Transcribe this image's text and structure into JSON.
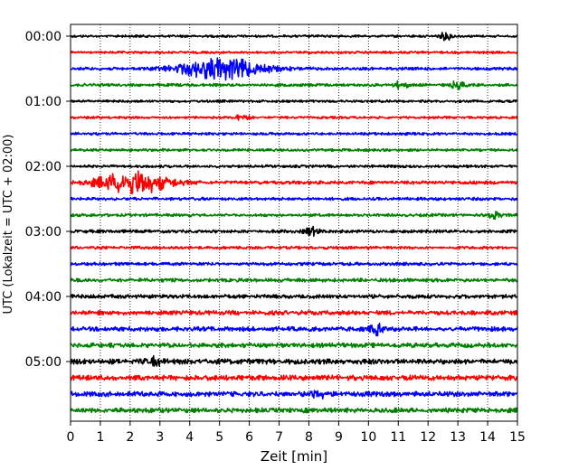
{
  "chart_data": {
    "type": "line",
    "title": "",
    "xlabel": "Zeit  [min]",
    "ylabel": "UTC (Lokalzeit = UTC + 02:00)",
    "xlim": [
      0,
      15
    ],
    "x_ticks": [
      "0",
      "1",
      "2",
      "3",
      "4",
      "5",
      "6",
      "7",
      "8",
      "9",
      "10",
      "11",
      "12",
      "13",
      "14",
      "15"
    ],
    "y_tick_labels": [
      "00:00",
      "01:00",
      "02:00",
      "03:00",
      "04:00",
      "05:00"
    ],
    "grid": "vertical dotted",
    "trace_interval_minutes": 15,
    "trace_colors": [
      "#000000",
      "#ff0000",
      "#0000ff",
      "#008000"
    ],
    "series": [
      {
        "start": "00:00",
        "color": "#000000",
        "amplitude": 1.0,
        "events": [
          {
            "minute": 12.6,
            "amplitude": 3.0
          }
        ]
      },
      {
        "start": "00:15",
        "color": "#ff0000",
        "amplitude": 1.0,
        "events": []
      },
      {
        "start": "00:30",
        "color": "#0000ff",
        "amplitude": 1.2,
        "events": [
          {
            "minute": 5.1,
            "amplitude": 9.0,
            "duration": 2.5
          }
        ]
      },
      {
        "start": "00:45",
        "color": "#008000",
        "amplitude": 1.2,
        "events": [
          {
            "minute": 11.1,
            "amplitude": 3.0
          },
          {
            "minute": 13.0,
            "amplitude": 3.0
          }
        ]
      },
      {
        "start": "01:00",
        "color": "#000000",
        "amplitude": 1.0,
        "events": []
      },
      {
        "start": "01:15",
        "color": "#ff0000",
        "amplitude": 1.0,
        "events": [
          {
            "minute": 5.8,
            "amplitude": 2.5
          }
        ]
      },
      {
        "start": "01:30",
        "color": "#0000ff",
        "amplitude": 1.1,
        "events": []
      },
      {
        "start": "01:45",
        "color": "#008000",
        "amplitude": 1.1,
        "events": []
      },
      {
        "start": "02:00",
        "color": "#000000",
        "amplitude": 1.1,
        "events": []
      },
      {
        "start": "02:15",
        "color": "#ff0000",
        "amplitude": 1.4,
        "events": [
          {
            "minute": 2.1,
            "amplitude": 10.0,
            "duration": 2.0
          }
        ]
      },
      {
        "start": "02:30",
        "color": "#0000ff",
        "amplitude": 1.2,
        "events": []
      },
      {
        "start": "02:45",
        "color": "#008000",
        "amplitude": 1.2,
        "events": [
          {
            "minute": 14.2,
            "amplitude": 2.5
          }
        ]
      },
      {
        "start": "03:00",
        "color": "#000000",
        "amplitude": 1.3,
        "events": [
          {
            "minute": 8.1,
            "amplitude": 3.0
          }
        ]
      },
      {
        "start": "03:15",
        "color": "#ff0000",
        "amplitude": 1.2,
        "events": []
      },
      {
        "start": "03:30",
        "color": "#0000ff",
        "amplitude": 1.3,
        "events": []
      },
      {
        "start": "03:45",
        "color": "#008000",
        "amplitude": 1.5,
        "events": []
      },
      {
        "start": "04:00",
        "color": "#000000",
        "amplitude": 1.6,
        "events": []
      },
      {
        "start": "04:15",
        "color": "#ff0000",
        "amplitude": 1.8,
        "events": []
      },
      {
        "start": "04:30",
        "color": "#0000ff",
        "amplitude": 1.9,
        "events": [
          {
            "minute": 10.3,
            "amplitude": 4.0
          }
        ]
      },
      {
        "start": "04:45",
        "color": "#008000",
        "amplitude": 1.9,
        "events": []
      },
      {
        "start": "05:00",
        "color": "#000000",
        "amplitude": 2.2,
        "events": [
          {
            "minute": 2.8,
            "amplitude": 3.0
          }
        ]
      },
      {
        "start": "05:15",
        "color": "#ff0000",
        "amplitude": 2.2,
        "events": []
      },
      {
        "start": "05:30",
        "color": "#0000ff",
        "amplitude": 2.1,
        "events": [
          {
            "minute": 8.3,
            "amplitude": 3.5
          }
        ]
      },
      {
        "start": "05:45",
        "color": "#008000",
        "amplitude": 2.0,
        "events": []
      }
    ]
  }
}
